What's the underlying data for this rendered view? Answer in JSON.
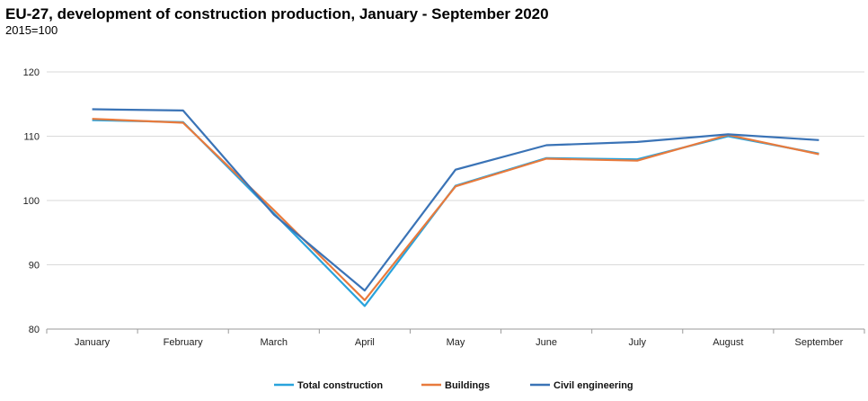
{
  "chart_data": {
    "type": "line",
    "title": "EU-27, development of construction production, January - September 2020",
    "subtitle": "2015=100",
    "xlabel": "",
    "ylabel": "",
    "categories": [
      "January",
      "February",
      "March",
      "April",
      "May",
      "June",
      "July",
      "August",
      "September"
    ],
    "ylim": [
      80,
      120
    ],
    "yticks": [
      80,
      90,
      100,
      110,
      120
    ],
    "grid": true,
    "legend_position": "bottom",
    "series": [
      {
        "name": "Total construction",
        "color": "#29a3dc",
        "values": [
          112.5,
          112.2,
          98.0,
          83.6,
          102.3,
          106.6,
          106.4,
          110.0,
          107.3
        ]
      },
      {
        "name": "Buildings",
        "color": "#e87a3c",
        "values": [
          112.7,
          112.1,
          98.5,
          84.5,
          102.2,
          106.5,
          106.2,
          110.2,
          107.2
        ]
      },
      {
        "name": "Civil engineering",
        "color": "#3a73b6",
        "values": [
          114.2,
          114.0,
          97.8,
          86.0,
          104.8,
          108.6,
          109.1,
          110.3,
          109.4
        ]
      }
    ]
  }
}
